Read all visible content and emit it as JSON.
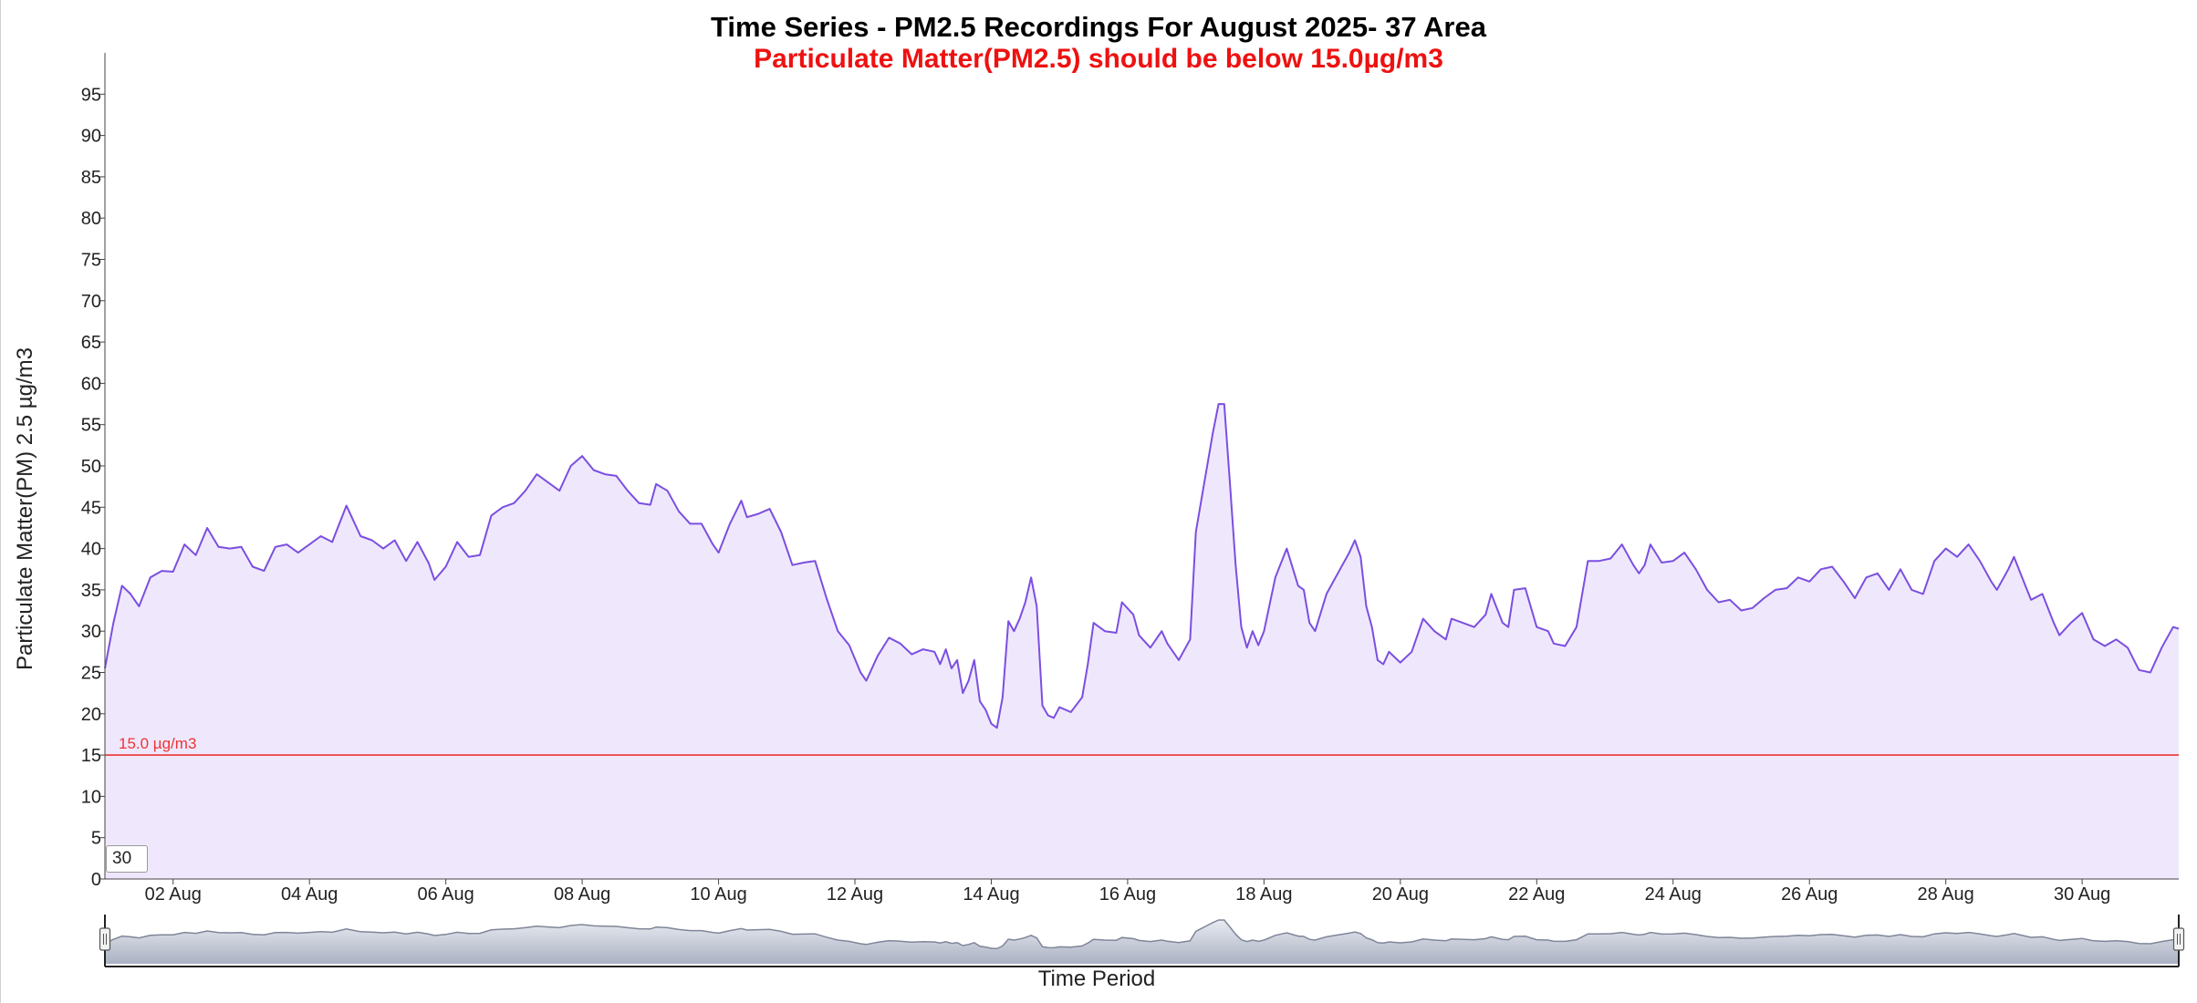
{
  "chart_data": {
    "type": "area",
    "title": "Time Series - PM2.5 Recordings For August 2025- 37 Area",
    "subtitle": "Particulate Matter(PM2.5) should be below 15.0µg/m3",
    "xlabel": "Time Period",
    "ylabel": "Particulate Matter(PM) 2.5 µg/m3",
    "ylim": [
      0,
      100
    ],
    "xlim": [
      "2025-08-01",
      "2025-08-31"
    ],
    "y_ticks": [
      0,
      5,
      10,
      15,
      20,
      25,
      30,
      35,
      40,
      45,
      50,
      55,
      60,
      65,
      70,
      75,
      80,
      85,
      90,
      95
    ],
    "x_ticks": [
      {
        "date": "2025-08-02",
        "label": "02 Aug"
      },
      {
        "date": "2025-08-04",
        "label": "04 Aug"
      },
      {
        "date": "2025-08-06",
        "label": "06 Aug"
      },
      {
        "date": "2025-08-08",
        "label": "08 Aug"
      },
      {
        "date": "2025-08-10",
        "label": "10 Aug"
      },
      {
        "date": "2025-08-12",
        "label": "12 Aug"
      },
      {
        "date": "2025-08-14",
        "label": "14 Aug"
      },
      {
        "date": "2025-08-16",
        "label": "16 Aug"
      },
      {
        "date": "2025-08-18",
        "label": "18 Aug"
      },
      {
        "date": "2025-08-20",
        "label": "20 Aug"
      },
      {
        "date": "2025-08-22",
        "label": "22 Aug"
      },
      {
        "date": "2025-08-24",
        "label": "24 Aug"
      },
      {
        "date": "2025-08-26",
        "label": "26 Aug"
      },
      {
        "date": "2025-08-28",
        "label": "28 Aug"
      },
      {
        "date": "2025-08-30",
        "label": "30 Aug"
      }
    ],
    "threshold": {
      "value": 15.0,
      "label": "15.0 µg/m3",
      "color": "#ee3333"
    },
    "grid": false,
    "colors": {
      "line": "#7b4fe0",
      "fill": "#efe8fd",
      "navigator_fill": "#cdd2dd",
      "navigator_line": "#7f8698"
    },
    "rolling_period": "30",
    "series": [
      {
        "points": [
          [
            "2025-08-01 00:00",
            25.5
          ],
          [
            "2025-08-01 03:00",
            31
          ],
          [
            "2025-08-01 06:00",
            35.5
          ],
          [
            "2025-08-01 09:00",
            34.5
          ],
          [
            "2025-08-01 12:00",
            33
          ],
          [
            "2025-08-01 16:00",
            36.5
          ],
          [
            "2025-08-01 20:00",
            37.3
          ],
          [
            "2025-08-02 00:00",
            37.2
          ],
          [
            "2025-08-02 04:00",
            40.5
          ],
          [
            "2025-08-02 08:00",
            39.2
          ],
          [
            "2025-08-02 12:00",
            42.5
          ],
          [
            "2025-08-02 16:00",
            40.2
          ],
          [
            "2025-08-02 20:00",
            40
          ],
          [
            "2025-08-03 00:00",
            40.2
          ],
          [
            "2025-08-03 04:00",
            37.8
          ],
          [
            "2025-08-03 08:00",
            37.3
          ],
          [
            "2025-08-03 12:00",
            40.2
          ],
          [
            "2025-08-03 16:00",
            40.5
          ],
          [
            "2025-08-03 20:00",
            39.5
          ],
          [
            "2025-08-04 00:00",
            40.5
          ],
          [
            "2025-08-04 04:00",
            41.5
          ],
          [
            "2025-08-04 08:00",
            40.8
          ],
          [
            "2025-08-04 13:00",
            45.2
          ],
          [
            "2025-08-04 18:00",
            41.5
          ],
          [
            "2025-08-04 22:00",
            41
          ],
          [
            "2025-08-05 02:00",
            40
          ],
          [
            "2025-08-05 06:00",
            41
          ],
          [
            "2025-08-05 10:00",
            38.5
          ],
          [
            "2025-08-05 14:00",
            40.8
          ],
          [
            "2025-08-05 18:00",
            38.2
          ],
          [
            "2025-08-05 20:00",
            36.2
          ],
          [
            "2025-08-06 00:00",
            37.8
          ],
          [
            "2025-08-06 04:00",
            40.8
          ],
          [
            "2025-08-06 08:00",
            39
          ],
          [
            "2025-08-06 12:00",
            39.2
          ],
          [
            "2025-08-06 16:00",
            44
          ],
          [
            "2025-08-06 20:00",
            45
          ],
          [
            "2025-08-07 00:00",
            45.5
          ],
          [
            "2025-08-07 04:00",
            47
          ],
          [
            "2025-08-07 08:00",
            49
          ],
          [
            "2025-08-07 12:00",
            48
          ],
          [
            "2025-08-07 16:00",
            47
          ],
          [
            "2025-08-07 20:00",
            50
          ],
          [
            "2025-08-08 00:00",
            51.2
          ],
          [
            "2025-08-08 04:00",
            49.5
          ],
          [
            "2025-08-08 08:00",
            49
          ],
          [
            "2025-08-08 12:00",
            48.8
          ],
          [
            "2025-08-08 16:00",
            47
          ],
          [
            "2025-08-08 20:00",
            45.5
          ],
          [
            "2025-08-09 00:00",
            45.3
          ],
          [
            "2025-08-09 02:00",
            47.8
          ],
          [
            "2025-08-09 06:00",
            47
          ],
          [
            "2025-08-09 10:00",
            44.5
          ],
          [
            "2025-08-09 14:00",
            43
          ],
          [
            "2025-08-09 18:00",
            43
          ],
          [
            "2025-08-09 22:00",
            40.5
          ],
          [
            "2025-08-10 00:00",
            39.5
          ],
          [
            "2025-08-10 04:00",
            43
          ],
          [
            "2025-08-10 08:00",
            45.8
          ],
          [
            "2025-08-10 10:00",
            43.8
          ],
          [
            "2025-08-10 14:00",
            44.2
          ],
          [
            "2025-08-10 18:00",
            44.8
          ],
          [
            "2025-08-10 22:00",
            42
          ],
          [
            "2025-08-11 02:00",
            38
          ],
          [
            "2025-08-11 06:00",
            38.3
          ],
          [
            "2025-08-11 10:00",
            38.5
          ],
          [
            "2025-08-11 14:00",
            34
          ],
          [
            "2025-08-11 18:00",
            30
          ],
          [
            "2025-08-11 22:00",
            28.3
          ],
          [
            "2025-08-12 02:00",
            25
          ],
          [
            "2025-08-12 04:00",
            24
          ],
          [
            "2025-08-12 08:00",
            27
          ],
          [
            "2025-08-12 12:00",
            29.2
          ],
          [
            "2025-08-12 16:00",
            28.5
          ],
          [
            "2025-08-12 20:00",
            27.2
          ],
          [
            "2025-08-13 00:00",
            27.8
          ],
          [
            "2025-08-13 04:00",
            27.5
          ],
          [
            "2025-08-13 06:00",
            26
          ],
          [
            "2025-08-13 08:00",
            27.8
          ],
          [
            "2025-08-13 10:00",
            25.5
          ],
          [
            "2025-08-13 12:00",
            26.5
          ],
          [
            "2025-08-13 14:00",
            22.5
          ],
          [
            "2025-08-13 16:00",
            24
          ],
          [
            "2025-08-13 18:00",
            26.5
          ],
          [
            "2025-08-13 20:00",
            21.5
          ],
          [
            "2025-08-13 22:00",
            20.5
          ],
          [
            "2025-08-14 00:00",
            18.8
          ],
          [
            "2025-08-14 02:00",
            18.3
          ],
          [
            "2025-08-14 04:00",
            22
          ],
          [
            "2025-08-14 06:00",
            31.2
          ],
          [
            "2025-08-14 08:00",
            30
          ],
          [
            "2025-08-14 10:00",
            31.5
          ],
          [
            "2025-08-14 12:00",
            33.5
          ],
          [
            "2025-08-14 14:00",
            36.5
          ],
          [
            "2025-08-14 16:00",
            33
          ],
          [
            "2025-08-14 18:00",
            21
          ],
          [
            "2025-08-14 20:00",
            19.8
          ],
          [
            "2025-08-14 22:00",
            19.5
          ],
          [
            "2025-08-15 00:00",
            20.8
          ],
          [
            "2025-08-15 04:00",
            20.2
          ],
          [
            "2025-08-15 08:00",
            22
          ],
          [
            "2025-08-15 10:00",
            26
          ],
          [
            "2025-08-15 12:00",
            31
          ],
          [
            "2025-08-15 14:00",
            30.5
          ],
          [
            "2025-08-15 16:00",
            30
          ],
          [
            "2025-08-15 20:00",
            29.8
          ],
          [
            "2025-08-15 22:00",
            33.5
          ],
          [
            "2025-08-16 02:00",
            32
          ],
          [
            "2025-08-16 04:00",
            29.5
          ],
          [
            "2025-08-16 08:00",
            28
          ],
          [
            "2025-08-16 12:00",
            30
          ],
          [
            "2025-08-16 14:00",
            28.5
          ],
          [
            "2025-08-16 18:00",
            26.5
          ],
          [
            "2025-08-16 22:00",
            29
          ],
          [
            "2025-08-17 00:00",
            42
          ],
          [
            "2025-08-17 02:00",
            46
          ],
          [
            "2025-08-17 04:00",
            50
          ],
          [
            "2025-08-17 06:00",
            54
          ],
          [
            "2025-08-17 08:00",
            57.5
          ],
          [
            "2025-08-17 10:00",
            57.5
          ],
          [
            "2025-08-17 12:00",
            48
          ],
          [
            "2025-08-17 14:00",
            38
          ],
          [
            "2025-08-17 16:00",
            30.5
          ],
          [
            "2025-08-17 18:00",
            28
          ],
          [
            "2025-08-17 20:00",
            30
          ],
          [
            "2025-08-17 22:00",
            28.3
          ],
          [
            "2025-08-18 00:00",
            30
          ],
          [
            "2025-08-18 04:00",
            36.5
          ],
          [
            "2025-08-18 08:00",
            40
          ],
          [
            "2025-08-18 12:00",
            35.5
          ],
          [
            "2025-08-18 14:00",
            35
          ],
          [
            "2025-08-18 16:00",
            31
          ],
          [
            "2025-08-18 18:00",
            30
          ],
          [
            "2025-08-18 22:00",
            34.5
          ],
          [
            "2025-08-19 02:00",
            37
          ],
          [
            "2025-08-19 06:00",
            39.5
          ],
          [
            "2025-08-19 08:00",
            41
          ],
          [
            "2025-08-19 10:00",
            39
          ],
          [
            "2025-08-19 12:00",
            33
          ],
          [
            "2025-08-19 14:00",
            30.5
          ],
          [
            "2025-08-19 16:00",
            26.5
          ],
          [
            "2025-08-19 18:00",
            26
          ],
          [
            "2025-08-19 20:00",
            27.5
          ],
          [
            "2025-08-20 00:00",
            26.2
          ],
          [
            "2025-08-20 04:00",
            27.5
          ],
          [
            "2025-08-20 08:00",
            31.5
          ],
          [
            "2025-08-20 12:00",
            30
          ],
          [
            "2025-08-20 16:00",
            29
          ],
          [
            "2025-08-20 18:00",
            31.5
          ],
          [
            "2025-08-20 22:00",
            31
          ],
          [
            "2025-08-21 02:00",
            30.5
          ],
          [
            "2025-08-21 06:00",
            32
          ],
          [
            "2025-08-21 08:00",
            34.5
          ],
          [
            "2025-08-21 12:00",
            31
          ],
          [
            "2025-08-21 14:00",
            30.5
          ],
          [
            "2025-08-21 16:00",
            35
          ],
          [
            "2025-08-21 20:00",
            35.2
          ],
          [
            "2025-08-22 00:00",
            30.5
          ],
          [
            "2025-08-22 04:00",
            30
          ],
          [
            "2025-08-22 06:00",
            28.5
          ],
          [
            "2025-08-22 10:00",
            28.2
          ],
          [
            "2025-08-22 14:00",
            30.5
          ],
          [
            "2025-08-22 18:00",
            38.5
          ],
          [
            "2025-08-22 22:00",
            38.5
          ],
          [
            "2025-08-23 02:00",
            38.8
          ],
          [
            "2025-08-23 06:00",
            40.5
          ],
          [
            "2025-08-23 10:00",
            38
          ],
          [
            "2025-08-23 12:00",
            37
          ],
          [
            "2025-08-23 14:00",
            38
          ],
          [
            "2025-08-23 16:00",
            40.5
          ],
          [
            "2025-08-23 20:00",
            38.3
          ],
          [
            "2025-08-24 00:00",
            38.5
          ],
          [
            "2025-08-24 04:00",
            39.5
          ],
          [
            "2025-08-24 08:00",
            37.5
          ],
          [
            "2025-08-24 12:00",
            35
          ],
          [
            "2025-08-24 16:00",
            33.5
          ],
          [
            "2025-08-24 20:00",
            33.8
          ],
          [
            "2025-08-25 00:00",
            32.5
          ],
          [
            "2025-08-25 04:00",
            32.8
          ],
          [
            "2025-08-25 08:00",
            34
          ],
          [
            "2025-08-25 12:00",
            35
          ],
          [
            "2025-08-25 16:00",
            35.2
          ],
          [
            "2025-08-25 20:00",
            36.5
          ],
          [
            "2025-08-26 00:00",
            36
          ],
          [
            "2025-08-26 04:00",
            37.5
          ],
          [
            "2025-08-26 08:00",
            37.8
          ],
          [
            "2025-08-26 12:00",
            36
          ],
          [
            "2025-08-26 16:00",
            34
          ],
          [
            "2025-08-26 20:00",
            36.5
          ],
          [
            "2025-08-27 00:00",
            37
          ],
          [
            "2025-08-27 04:00",
            35
          ],
          [
            "2025-08-27 08:00",
            37.5
          ],
          [
            "2025-08-27 12:00",
            35
          ],
          [
            "2025-08-27 16:00",
            34.5
          ],
          [
            "2025-08-27 20:00",
            38.5
          ],
          [
            "2025-08-28 00:00",
            40
          ],
          [
            "2025-08-28 04:00",
            39
          ],
          [
            "2025-08-28 08:00",
            40.5
          ],
          [
            "2025-08-28 12:00",
            38.5
          ],
          [
            "2025-08-28 16:00",
            36
          ],
          [
            "2025-08-28 18:00",
            35
          ],
          [
            "2025-08-28 22:00",
            37.5
          ],
          [
            "2025-08-29 00:00",
            39
          ],
          [
            "2025-08-29 04:00",
            35.5
          ],
          [
            "2025-08-29 06:00",
            33.8
          ],
          [
            "2025-08-29 10:00",
            34.5
          ],
          [
            "2025-08-29 14:00",
            31
          ],
          [
            "2025-08-29 16:00",
            29.5
          ],
          [
            "2025-08-29 20:00",
            31
          ],
          [
            "2025-08-30 00:00",
            32.2
          ],
          [
            "2025-08-30 04:00",
            29
          ],
          [
            "2025-08-30 08:00",
            28.2
          ],
          [
            "2025-08-30 12:00",
            29
          ],
          [
            "2025-08-30 16:00",
            28
          ],
          [
            "2025-08-30 20:00",
            25.3
          ],
          [
            "2025-08-31 00:00",
            25
          ],
          [
            "2025-08-31 04:00",
            28
          ],
          [
            "2025-08-31 08:00",
            30.5
          ],
          [
            "2025-08-31 10:00",
            30.3
          ]
        ]
      }
    ]
  }
}
